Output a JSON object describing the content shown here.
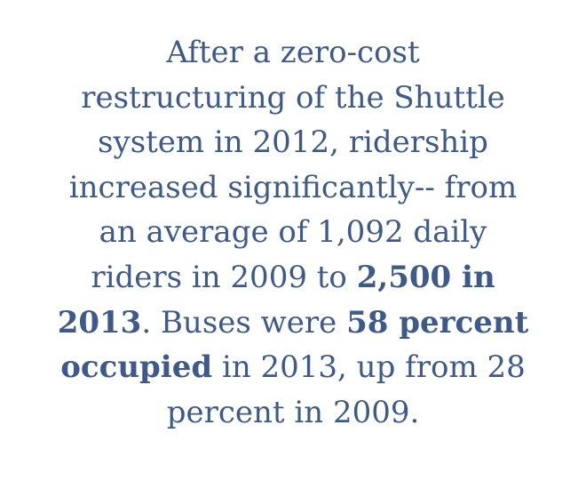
{
  "lines": [
    [
      "After a zero-cost"
    ],
    [
      "restructuring of the Shuttle"
    ],
    [
      "system in 2012, ridership"
    ],
    [
      "increased significantly-- from"
    ],
    [
      "an average of 1,092 daily"
    ],
    [
      "riders in 2009 to ",
      "2,500 in"
    ],
    [
      "2013",
      ". Buses were ",
      "58 percent"
    ],
    [
      "occupied",
      " in 2013, up from 28"
    ],
    [
      "percent in 2009."
    ]
  ]
}
